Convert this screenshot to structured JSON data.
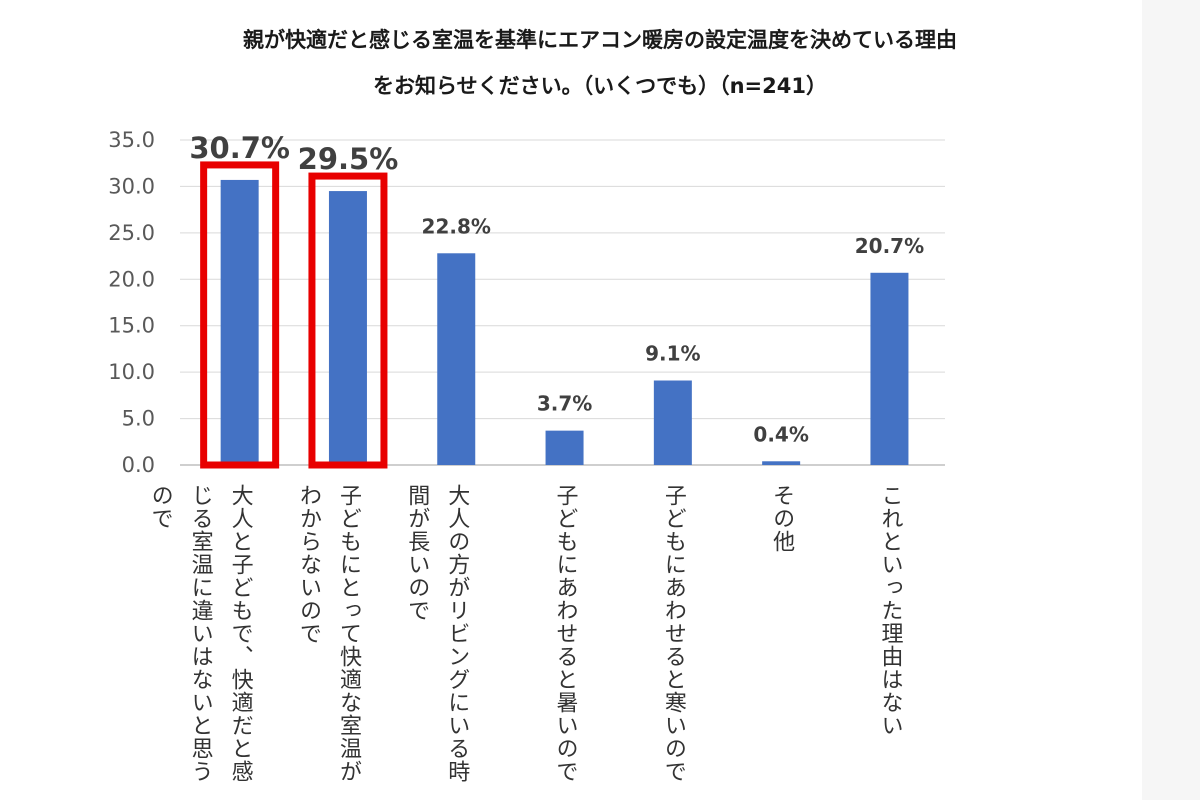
{
  "title": {
    "line1": "親が快適だと感じる室温を基準にエアコン暖房の設定温度を決めている理由",
    "line2": "をお知らせください。（いくつでも）（n=241）"
  },
  "colors": {
    "bar": "#4472c4",
    "highlight": "#e80000",
    "grid": "#d9d9d9",
    "axis": "#bfbfbf"
  },
  "chart_data": {
    "type": "bar",
    "title": "親が快適だと感じる室温を基準にエアコン暖房の設定温度を決めている理由をお知らせください。（いくつでも）（n=241）",
    "categories": [
      "大人と子どもで、快適だと感じる室温に違いはないと思うので",
      "子どもにとって快適な室温がわからないので",
      "大人の方がリビングにいる時間が長いので",
      "子どもにあわせると暑いので",
      "子どもにあわせると寒いので",
      "その他",
      "これといった理由はない"
    ],
    "values": [
      30.7,
      29.5,
      22.8,
      3.7,
      9.1,
      0.4,
      20.7
    ],
    "data_labels": [
      "30.7%",
      "29.5%",
      "22.8%",
      "3.7%",
      "9.1%",
      "0.4%",
      "20.7%"
    ],
    "y_ticks": [
      "0.0",
      "5.0",
      "10.0",
      "15.0",
      "20.0",
      "25.0",
      "30.0",
      "35.0"
    ],
    "ylim": [
      0,
      35
    ],
    "grid": true,
    "highlighted_categories": [
      0,
      1
    ]
  },
  "category_label_lines": [
    [
      "大人と子どもで、快適だと感",
      "じる室温に違いはないと思う",
      "ので"
    ],
    [
      "子どもにとって快適な室温が",
      "わからないので"
    ],
    [
      "大人の方がリビングにいる時",
      "間が長いので"
    ],
    [
      "子どもにあわせると暑いので"
    ],
    [
      "子どもにあわせると寒いので"
    ],
    [
      "その他"
    ],
    [
      "これといった理由はない"
    ]
  ]
}
